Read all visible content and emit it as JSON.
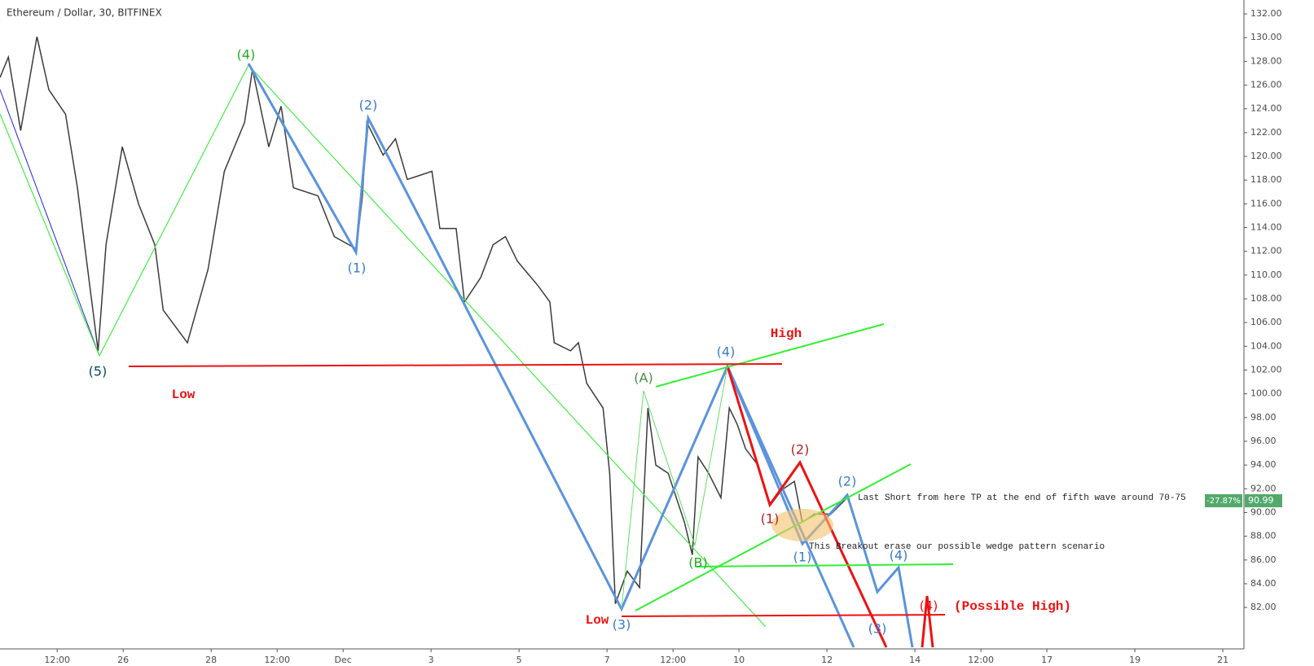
{
  "chart_data": {
    "type": "line",
    "title": "Ethereum / Dollar, 30, BITFINEX",
    "xlim": [
      23.2,
      51.48
    ],
    "ylim": [
      78.51,
      133.17
    ],
    "yticks": [
      {
        "value": 82,
        "label": "82.00"
      },
      {
        "value": 84,
        "label": "84.00"
      },
      {
        "value": 86,
        "label": "86.00"
      },
      {
        "value": 88,
        "label": "88.00"
      },
      {
        "value": 90,
        "label": "90.00"
      },
      {
        "value": 92,
        "label": "92.00"
      },
      {
        "value": 94,
        "label": "94.00"
      },
      {
        "value": 96,
        "label": "96.00"
      },
      {
        "value": 98,
        "label": "98.00"
      },
      {
        "value": 100,
        "label": "100.00"
      },
      {
        "value": 102,
        "label": "102.00"
      },
      {
        "value": 104,
        "label": "104.00"
      },
      {
        "value": 106,
        "label": "106.00"
      },
      {
        "value": 108,
        "label": "108.00"
      },
      {
        "value": 110,
        "label": "110.00"
      },
      {
        "value": 112,
        "label": "112.00"
      },
      {
        "value": 114,
        "label": "114.00"
      },
      {
        "value": 116,
        "label": "116.00"
      },
      {
        "value": 118,
        "label": "118.00"
      },
      {
        "value": 120,
        "label": "120.00"
      },
      {
        "value": 122,
        "label": "122.00"
      },
      {
        "value": 124,
        "label": "124.00"
      },
      {
        "value": 126,
        "label": "126.00"
      },
      {
        "value": 128,
        "label": "128.00"
      },
      {
        "value": 130,
        "label": "130.00"
      },
      {
        "value": 132,
        "label": "132.00"
      }
    ],
    "xticks": [
      {
        "value": 24.5,
        "label": "12:00"
      },
      {
        "value": 26,
        "label": "26"
      },
      {
        "value": 28,
        "label": "28"
      },
      {
        "value": 29.5,
        "label": "12:00"
      },
      {
        "value": 31,
        "label": "Dec"
      },
      {
        "value": 33,
        "label": "3"
      },
      {
        "value": 35,
        "label": "5"
      },
      {
        "value": 37,
        "label": "7"
      },
      {
        "value": 38.5,
        "label": "12:00"
      },
      {
        "value": 40,
        "label": "10"
      },
      {
        "value": 42,
        "label": "12"
      },
      {
        "value": 44,
        "label": "14"
      },
      {
        "value": 45.5,
        "label": "12:00"
      },
      {
        "value": 47,
        "label": "17"
      },
      {
        "value": 49,
        "label": "19"
      },
      {
        "value": 51,
        "label": "21"
      }
    ],
    "grid": false,
    "series": [
      {
        "color": "#3b3b3b",
        "x": [
          23.2,
          23.39,
          23.67,
          24.04,
          24.31,
          24.69,
          24.96,
          25.24,
          25.43,
          25.61,
          25.98,
          26.35,
          26.72,
          26.91,
          27.46,
          27.93,
          28.3,
          28.76,
          28.94,
          29.31,
          29.59,
          29.87,
          30.43,
          30.8,
          31.3,
          31.44,
          31.54,
          31.91,
          32.19,
          32.46,
          33.02,
          33.2,
          33.57,
          33.76,
          34.13,
          34.41,
          34.69,
          34.96,
          35.43,
          35.7,
          35.8,
          36.17,
          36.35,
          36.54,
          36.91,
          37.06,
          37.19,
          37.46,
          37.74,
          37.93,
          38.11,
          38.39,
          38.76,
          38.94,
          39.07,
          39.31,
          39.59,
          39.78,
          39.96,
          40.15,
          40.43,
          40.7,
          40.98,
          41.26,
          41.44,
          41.72,
          42.09,
          42.46
        ],
        "values": [
          126.64,
          128.36,
          122.17,
          130.08,
          125.61,
          123.55,
          117.36,
          109.11,
          103.62,
          112.55,
          120.8,
          115.99,
          112.55,
          107.05,
          104.3,
          110.49,
          118.74,
          122.86,
          127.33,
          120.8,
          124.23,
          117.36,
          116.67,
          113.24,
          112.21,
          116.67,
          122.86,
          120.11,
          121.48,
          118.05,
          118.74,
          113.92,
          113.92,
          107.74,
          109.8,
          112.55,
          113.24,
          111.18,
          109.11,
          107.74,
          104.3,
          103.62,
          104.3,
          100.87,
          98.8,
          93.31,
          82.31,
          85.06,
          83.68,
          98.8,
          93.99,
          93.31,
          89.18,
          86.43,
          94.68,
          93.31,
          91.24,
          98.8,
          97.43,
          95.37,
          93.99,
          90.56,
          91.93,
          92.62,
          89.18,
          89.87,
          89.87,
          91.24
        ]
      }
    ],
    "price_tag": {
      "change": "-27.87%",
      "price": 90.99
    },
    "annotations": [
      "(5)",
      "Low",
      "(4)",
      "(2)",
      "(1)",
      "High",
      "(A)",
      "(4)",
      "(2)",
      "(1)",
      "(1)",
      "(2)",
      "(B)",
      "(3)",
      "Low",
      "(4)",
      "(3)",
      "(4)",
      "(Possible High)",
      "Last Short from here TP at the end of fifth wave around 70-75",
      "This Breakout erase our possible wedge pattern scenario"
    ]
  }
}
